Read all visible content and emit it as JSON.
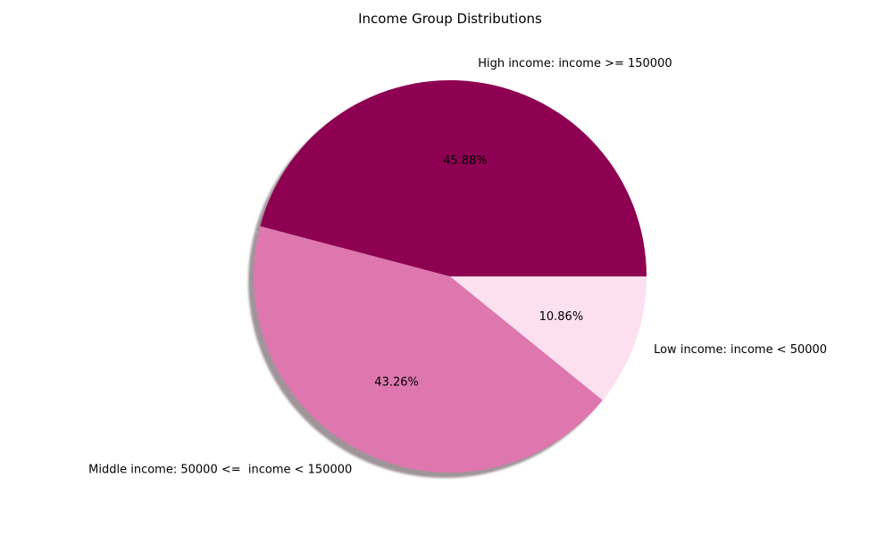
{
  "chart_data": {
    "type": "pie",
    "title": "Income Group Distributions",
    "shadow": true,
    "start_angle_deg": 0,
    "direction": "counterclockwise",
    "slices": [
      {
        "label": "High income: income >= 150000",
        "value": 45.88,
        "pct_label": "45.88%",
        "color": "#8e0152"
      },
      {
        "label": "Middle income: 50000 <=  income < 150000",
        "value": 43.26,
        "pct_label": "43.26%",
        "color": "#de77ae"
      },
      {
        "label": "Low income: income < 50000",
        "value": 10.86,
        "pct_label": "10.86%",
        "color": "#fde0ef"
      }
    ]
  }
}
